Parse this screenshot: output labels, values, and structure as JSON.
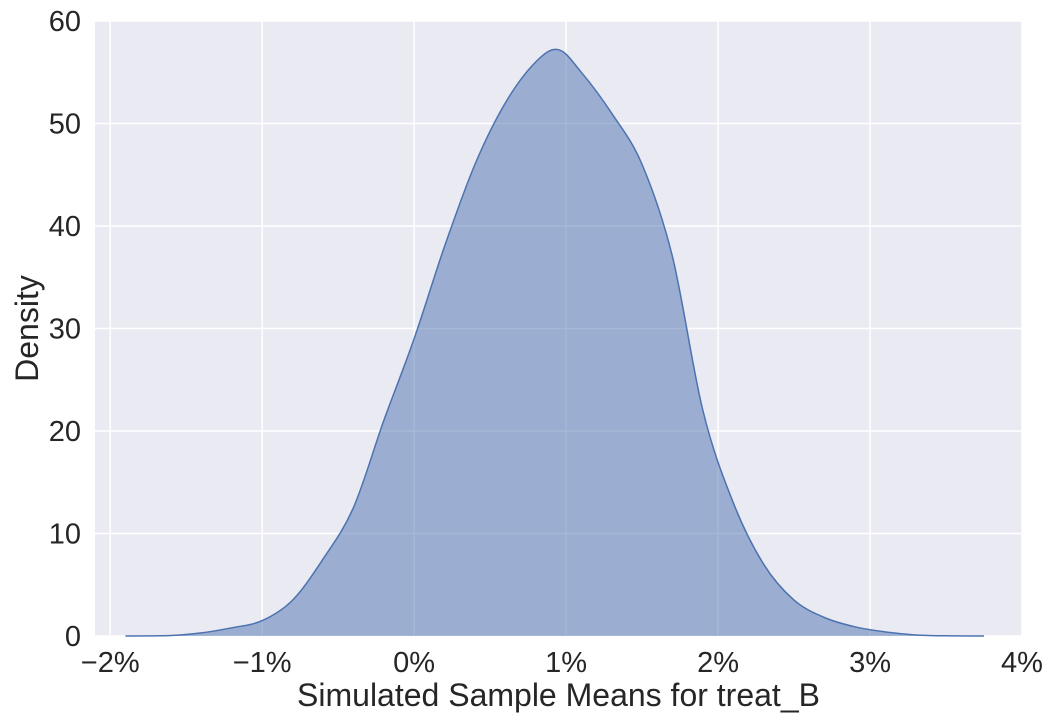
{
  "chart_data": {
    "type": "area",
    "title": "",
    "xlabel": "Simulated Sample Means for treat_B",
    "ylabel": "Density",
    "xlim": [
      -2.1,
      4.0
    ],
    "ylim": [
      0,
      60
    ],
    "x_ticks": [
      -2,
      -1,
      0,
      1,
      2,
      3,
      4
    ],
    "x_tick_labels": [
      "−2%",
      "−1%",
      "0%",
      "1%",
      "2%",
      "3%",
      "4%"
    ],
    "y_ticks": [
      0,
      10,
      20,
      30,
      40,
      50,
      60
    ],
    "y_tick_labels": [
      "0",
      "10",
      "20",
      "30",
      "40",
      "50",
      "60"
    ],
    "grid": true,
    "legend": "none",
    "colors": {
      "background": "#eaeaf2",
      "grid": "#ffffff",
      "fill": "#4c72b0",
      "fill_opacity": 0.5,
      "line": "#4c72b0"
    },
    "series": [
      {
        "x": [
          -1.9,
          -1.6,
          -1.4,
          -1.2,
          -1.0,
          -0.8,
          -0.6,
          -0.4,
          -0.2,
          0.0,
          0.2,
          0.4,
          0.6,
          0.8,
          0.95,
          1.1,
          1.3,
          1.5,
          1.7,
          1.9,
          2.1,
          2.3,
          2.5,
          2.7,
          2.9,
          3.1,
          3.3,
          3.5,
          3.75
        ],
        "y": [
          0.0,
          0.05,
          0.3,
          0.8,
          1.5,
          3.5,
          7.5,
          12.5,
          21.0,
          29.0,
          38.0,
          46.0,
          52.0,
          56.0,
          57.2,
          55.0,
          51.0,
          46.0,
          37.0,
          22.0,
          13.0,
          7.0,
          3.5,
          1.8,
          0.9,
          0.4,
          0.1,
          0.02,
          0.0
        ]
      }
    ]
  }
}
